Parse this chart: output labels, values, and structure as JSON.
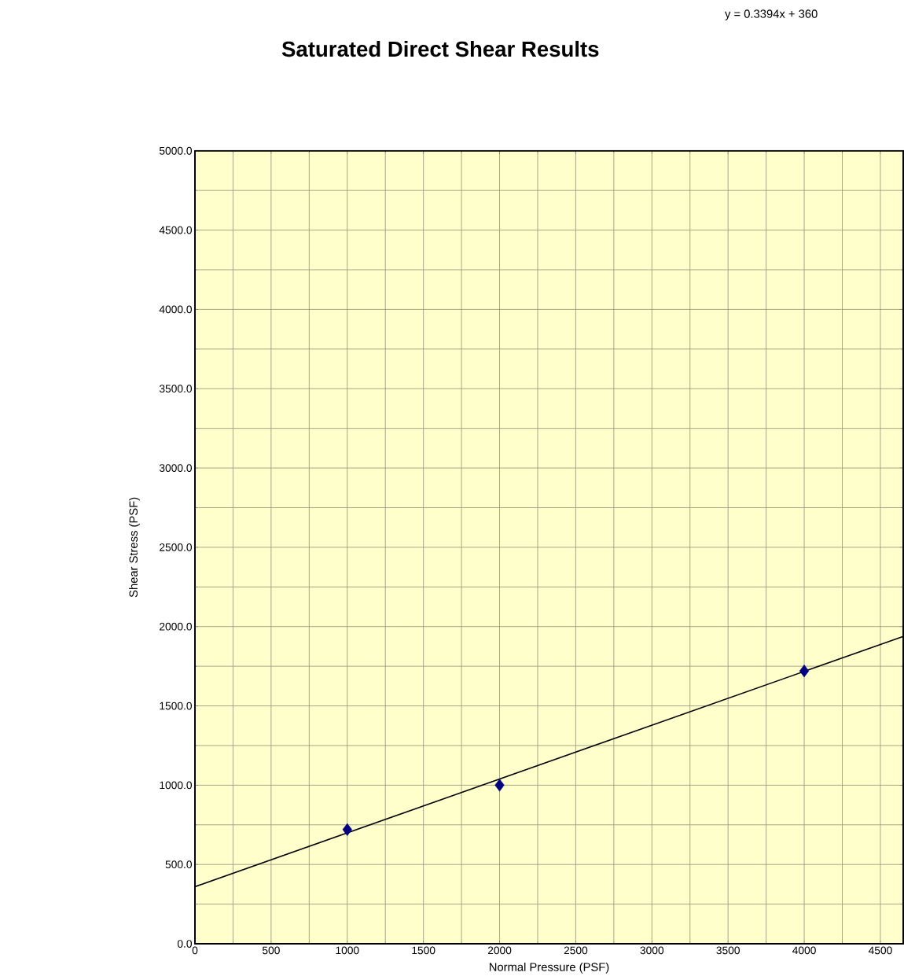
{
  "chart_data": {
    "type": "scatter",
    "title": "Saturated Direct Shear Results",
    "xlabel": "Normal Pressure (PSF)",
    "ylabel": "Shear Stress (PSF)",
    "annotations": [
      "y = 0.3394x + 360"
    ],
    "series": [
      {
        "color": "#000080",
        "marker": "diamond",
        "x": [
          1000,
          2000,
          4000
        ],
        "values": [
          720,
          1000,
          1720
        ]
      },
      {
        "type": "line",
        "color": "#000000",
        "marker": "none",
        "line_style": "solid",
        "x": [
          0,
          4650
        ],
        "values": [
          360,
          1938
        ]
      }
    ],
    "xlim": [
      0,
      4650
    ],
    "ylim": [
      0,
      5000
    ],
    "xticks": [
      0,
      500,
      1000,
      1500,
      2000,
      2500,
      3000,
      3500,
      4000,
      4500
    ],
    "yticks": [
      {
        "value": 0,
        "label": "0.0"
      },
      {
        "value": 500,
        "label": "500.0"
      },
      {
        "value": 1000,
        "label": "1000.0"
      },
      {
        "value": 1500,
        "label": "1500.0"
      },
      {
        "value": 2000,
        "label": "2000.0"
      },
      {
        "value": 2500,
        "label": "2500.0"
      },
      {
        "value": 3000,
        "label": "3000.0"
      },
      {
        "value": 3500,
        "label": "3500.0"
      },
      {
        "value": 4000,
        "label": "4000.0"
      },
      {
        "value": 4500,
        "label": "4500.0"
      },
      {
        "value": 5000,
        "label": "5000.0"
      }
    ],
    "grid": true
  }
}
